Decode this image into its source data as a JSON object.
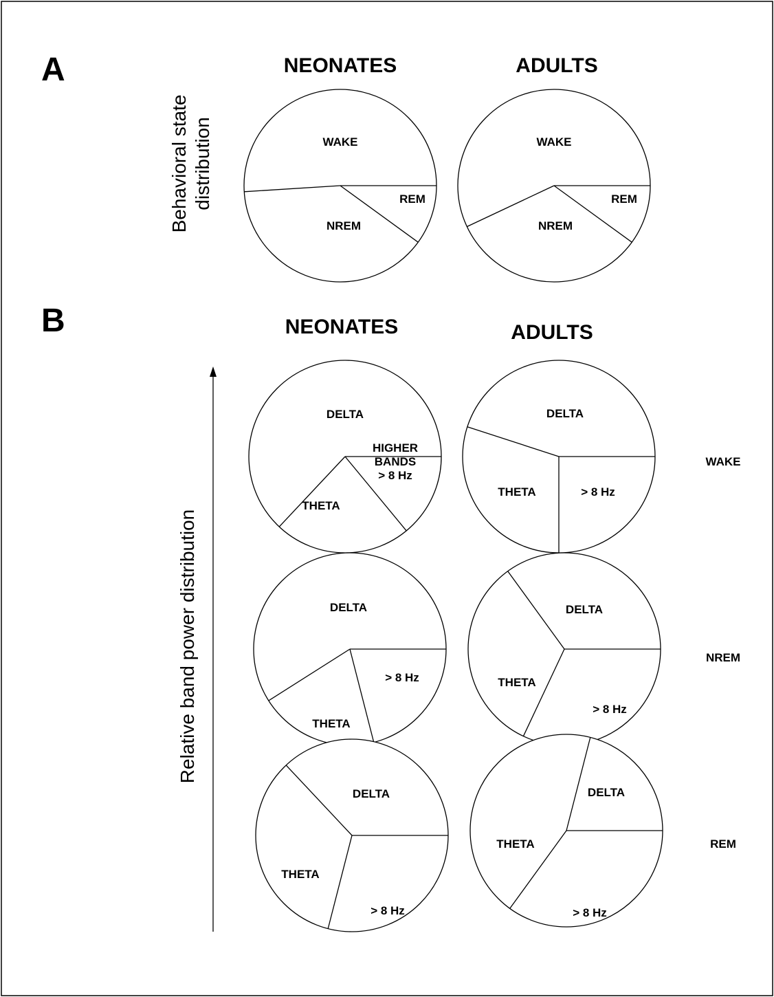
{
  "panels": {
    "a": {
      "letter": "A",
      "neonates_title": "NEONATES",
      "adults_title": "ADULTS",
      "ylabel": "Behavioral state distribution",
      "ylabel_line1": "Behavioral state",
      "ylabel_line2": "distribution"
    },
    "b": {
      "letter": "B",
      "neonates_title": "NEONATES",
      "adults_title": "ADULTS",
      "ylabel": "Relative band power distribution"
    }
  },
  "row_labels": [
    "WAKE",
    "NREM",
    "REM"
  ],
  "colors": {
    "background": "#ffffff",
    "stroke": "#000000",
    "text": "#000000"
  },
  "chart_data": [
    {
      "type": "pie",
      "panel": "A",
      "group": "NEONATES",
      "categories": [
        "WAKE",
        "NREM",
        "REM"
      ],
      "values": [
        51,
        39,
        10
      ]
    },
    {
      "type": "pie",
      "panel": "A",
      "group": "ADULTS",
      "categories": [
        "WAKE",
        "NREM",
        "REM"
      ],
      "values": [
        57,
        33,
        10
      ]
    },
    {
      "type": "pie",
      "panel": "B",
      "group": "NEONATES",
      "state": "WAKE",
      "categories": [
        "DELTA",
        "THETA",
        "HIGHER BANDS > 8 Hz"
      ],
      "values": [
        63,
        23,
        14
      ]
    },
    {
      "type": "pie",
      "panel": "B",
      "group": "ADULTS",
      "state": "WAKE",
      "categories": [
        "DELTA",
        "THETA",
        "> 8 Hz"
      ],
      "values": [
        45,
        30,
        25
      ]
    },
    {
      "type": "pie",
      "panel": "B",
      "group": "NEONATES",
      "state": "NREM",
      "categories": [
        "DELTA",
        "THETA",
        "> 8 Hz"
      ],
      "values": [
        59,
        20,
        21
      ]
    },
    {
      "type": "pie",
      "panel": "B",
      "group": "ADULTS",
      "state": "NREM",
      "categories": [
        "DELTA",
        "THETA",
        "> 8 Hz"
      ],
      "values": [
        35,
        33,
        32
      ]
    },
    {
      "type": "pie",
      "panel": "B",
      "group": "NEONATES",
      "state": "REM",
      "categories": [
        "DELTA",
        "THETA",
        "> 8 Hz"
      ],
      "values": [
        37,
        34,
        29
      ]
    },
    {
      "type": "pie",
      "panel": "B",
      "group": "ADULTS",
      "state": "REM",
      "categories": [
        "DELTA",
        "THETA",
        "> 8 Hz"
      ],
      "values": [
        21,
        44,
        35
      ]
    }
  ]
}
